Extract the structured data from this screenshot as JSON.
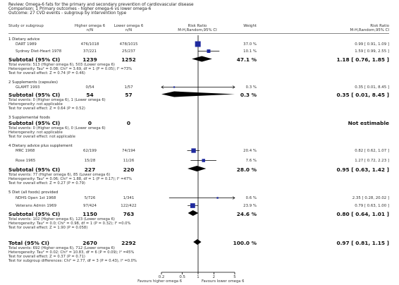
{
  "header": {
    "review": "Review:  Omega-6 fats for the primary and secondary prevention of cardiovascular disease",
    "comparison": "Comparison:  1 Primary outcomes - higher omega-6 vs lower omega-6",
    "outcome": "Outcome:  27 CVD events - subgroup by intervention type"
  },
  "columns": {
    "study": "Study or subgroup",
    "higher": "Higher omega 6",
    "higher_sub": "n/N",
    "lower": "Lower omega 6",
    "lower_sub": "n/N",
    "rr": "Risk Ratio",
    "rr_sub": "M-H,Random,95% CI",
    "weight": "Weight",
    "rr2": "Risk Ratio",
    "rr2_sub": "M-H,Random,95% CI"
  },
  "groups": [
    {
      "title": "1 Dietary advice",
      "studies": [
        {
          "name": "DART 1989",
          "higher": "476/1018",
          "lower": "478/1015",
          "weight": "37.0 %",
          "ci": "0.99 [ 0.91, 1.09 ]"
        },
        {
          "name": "Sydney Diet-Heart 1978",
          "higher": "37/221",
          "lower": "25/237",
          "weight": "10.1 %",
          "ci": "1.59 [ 0.99, 2.55 ]"
        }
      ],
      "subtotal": {
        "label": "Subtotal (95% CI)",
        "higher": "1239",
        "lower": "1252",
        "weight": "47.1 %",
        "ci": "1.18 [ 0.76, 1.85 ]"
      },
      "notes": [
        "Total events: 513 (Higher omega 6), 503 (Lower omega 6)",
        "Heterogeneity: Tau² = 0.08; Chi² = 3.69, df = 1 (P = 0.05); I² =73%",
        "Test for overall effect: Z = 0.74 (P = 0.46)"
      ]
    },
    {
      "title": "2 Supplements (capsules)",
      "studies": [
        {
          "name": "GLAMT 1993",
          "higher": "0/54",
          "lower": "1/57",
          "weight": "0.3 %",
          "ci": "0.35 [ 0.01, 8.45 ]"
        }
      ],
      "subtotal": {
        "label": "Subtotal (95% CI)",
        "higher": "54",
        "lower": "57",
        "weight": "0.3 %",
        "ci": "0.35 [ 0.01, 8.45 ]"
      },
      "notes": [
        "Total events: 0 (Higher omega 6), 1 (Lower omega 6)",
        "Heterogeneity: not applicable",
        "Test for overall effect: Z = 0.64 (P = 0.52)"
      ]
    },
    {
      "title": "3 Supplemental foods",
      "studies": [],
      "subtotal": {
        "label": "Subtotal (95% CI)",
        "higher": "0",
        "lower": "0",
        "weight": "",
        "ci": "Not estimable"
      },
      "notes": [
        "Total events: 0 (Higher omega 6), 0 (Lower omega 6)",
        "Heterogeneity: not applicable",
        "Test for overall effect: not applicable"
      ]
    },
    {
      "title": "4 Dietary advice plus supplement",
      "studies": [
        {
          "name": "MRC 1968",
          "higher": "62/199",
          "lower": "74/194",
          "weight": "20.4 %",
          "ci": "0.82 [ 0.62, 1.07 ]"
        },
        {
          "name": "Rose 1965",
          "higher": "15/28",
          "lower": "11/26",
          "weight": "7.6 %",
          "ci": "1.27 [ 0.72, 2.23 ]"
        }
      ],
      "subtotal": {
        "label": "Subtotal (95% CI)",
        "higher": "227",
        "lower": "220",
        "weight": "28.0 %",
        "ci": "0.95 [ 0.63, 1.42 ]"
      },
      "notes": [
        "Total events: 77 (Higher omega 6), 85 (Lower omega 6)",
        "Heterogeneity: Tau² = 0.06; Chi² = 1.88, df = 1 (P = 0.17); I² =47%",
        "Test for overall effect: Z = 0.27 (P = 0.79)"
      ]
    },
    {
      "title": "5 Diet (all foods) provided",
      "studies": [
        {
          "name": "NDHS Open 1st 1968",
          "higher": "5/726",
          "lower": "1/341",
          "weight": "0.6 %",
          "ci": "2.35 [ 0.28, 20.02 ]"
        },
        {
          "name": "Veterans Admin 1969",
          "higher": "97/424",
          "lower": "122/422",
          "weight": "23.9 %",
          "ci": "0.79 [ 0.63, 1.00 ]"
        }
      ],
      "subtotal": {
        "label": "Subtotal (95% CI)",
        "higher": "1150",
        "lower": "763",
        "weight": "24.6 %",
        "ci": "0.80 [ 0.64, 1.01 ]"
      },
      "notes": [
        "Total events: 102 (Higher omega 6), 123 (Lower omega 6)",
        "Heterogeneity: Tau² = 0.0; Chi² = 0.98, df = 1 (P = 0.32); I² =0.0%",
        "Test for overall effect: Z = 1.90 (P = 0.058)"
      ]
    }
  ],
  "total": {
    "label": "Total (95% CI)",
    "higher": "2670",
    "lower": "2292",
    "weight": "100.0 %",
    "ci": "0.97 [ 0.81, 1.15 ]",
    "notes": [
      "Total events: 692 (Higher omega 6), 712 (Lower omega 6)",
      "Heterogeneity: Tau² = 0.02; Chi² = 10.83, df = 6 (P = 0.09); I² =45%",
      "Test for overall effect: Z = 0.37 (P = 0.71)",
      "Test for subgroup differences: Chi² = 2.77, df = 3 (P = 0.43), I² =0.0%"
    ]
  },
  "axis": {
    "favours_left": "Favours higher omega 6",
    "favours_right": "Favours lower omega 6"
  },
  "chart_data": {
    "type": "forest",
    "scale": "log",
    "xlim": [
      0.2,
      5
    ],
    "ticks": [
      0.2,
      0.5,
      1,
      2,
      5
    ],
    "tick_labels": [
      "0.2",
      "0.5",
      "1",
      "2",
      "5"
    ],
    "reference_line": 1,
    "studies": [
      {
        "name": "DART 1989",
        "rr": 0.99,
        "lo": 0.91,
        "hi": 1.09,
        "weight": 37.0
      },
      {
        "name": "Sydney Diet-Heart 1978",
        "rr": 1.59,
        "lo": 0.99,
        "hi": 2.55,
        "weight": 10.1
      },
      {
        "name": "GLAMT 1993",
        "rr": 0.35,
        "lo": 0.01,
        "hi": 8.45,
        "weight": 0.3
      },
      {
        "name": "MRC 1968",
        "rr": 0.82,
        "lo": 0.62,
        "hi": 1.07,
        "weight": 20.4
      },
      {
        "name": "Rose 1965",
        "rr": 1.27,
        "lo": 0.72,
        "hi": 2.23,
        "weight": 7.6
      },
      {
        "name": "NDHS Open 1st 1968",
        "rr": 2.35,
        "lo": 0.28,
        "hi": 20.02,
        "weight": 0.6
      },
      {
        "name": "Veterans Admin 1969",
        "rr": 0.79,
        "lo": 0.63,
        "hi": 1.0,
        "weight": 23.9
      }
    ],
    "subtotals": [
      {
        "name": "1 Dietary advice",
        "rr": 1.18,
        "lo": 0.76,
        "hi": 1.85
      },
      {
        "name": "2 Supplements (capsules)",
        "rr": 0.35,
        "lo": 0.01,
        "hi": 8.45
      },
      {
        "name": "4 Dietary advice plus supplement",
        "rr": 0.95,
        "lo": 0.63,
        "hi": 1.42
      },
      {
        "name": "5 Diet (all foods) provided",
        "rr": 0.8,
        "lo": 0.64,
        "hi": 1.01
      }
    ],
    "total": {
      "rr": 0.97,
      "lo": 0.81,
      "hi": 1.15
    },
    "colors": {
      "marker": "#1f2a9e",
      "diamond": "#000000",
      "line": "#000000"
    }
  }
}
